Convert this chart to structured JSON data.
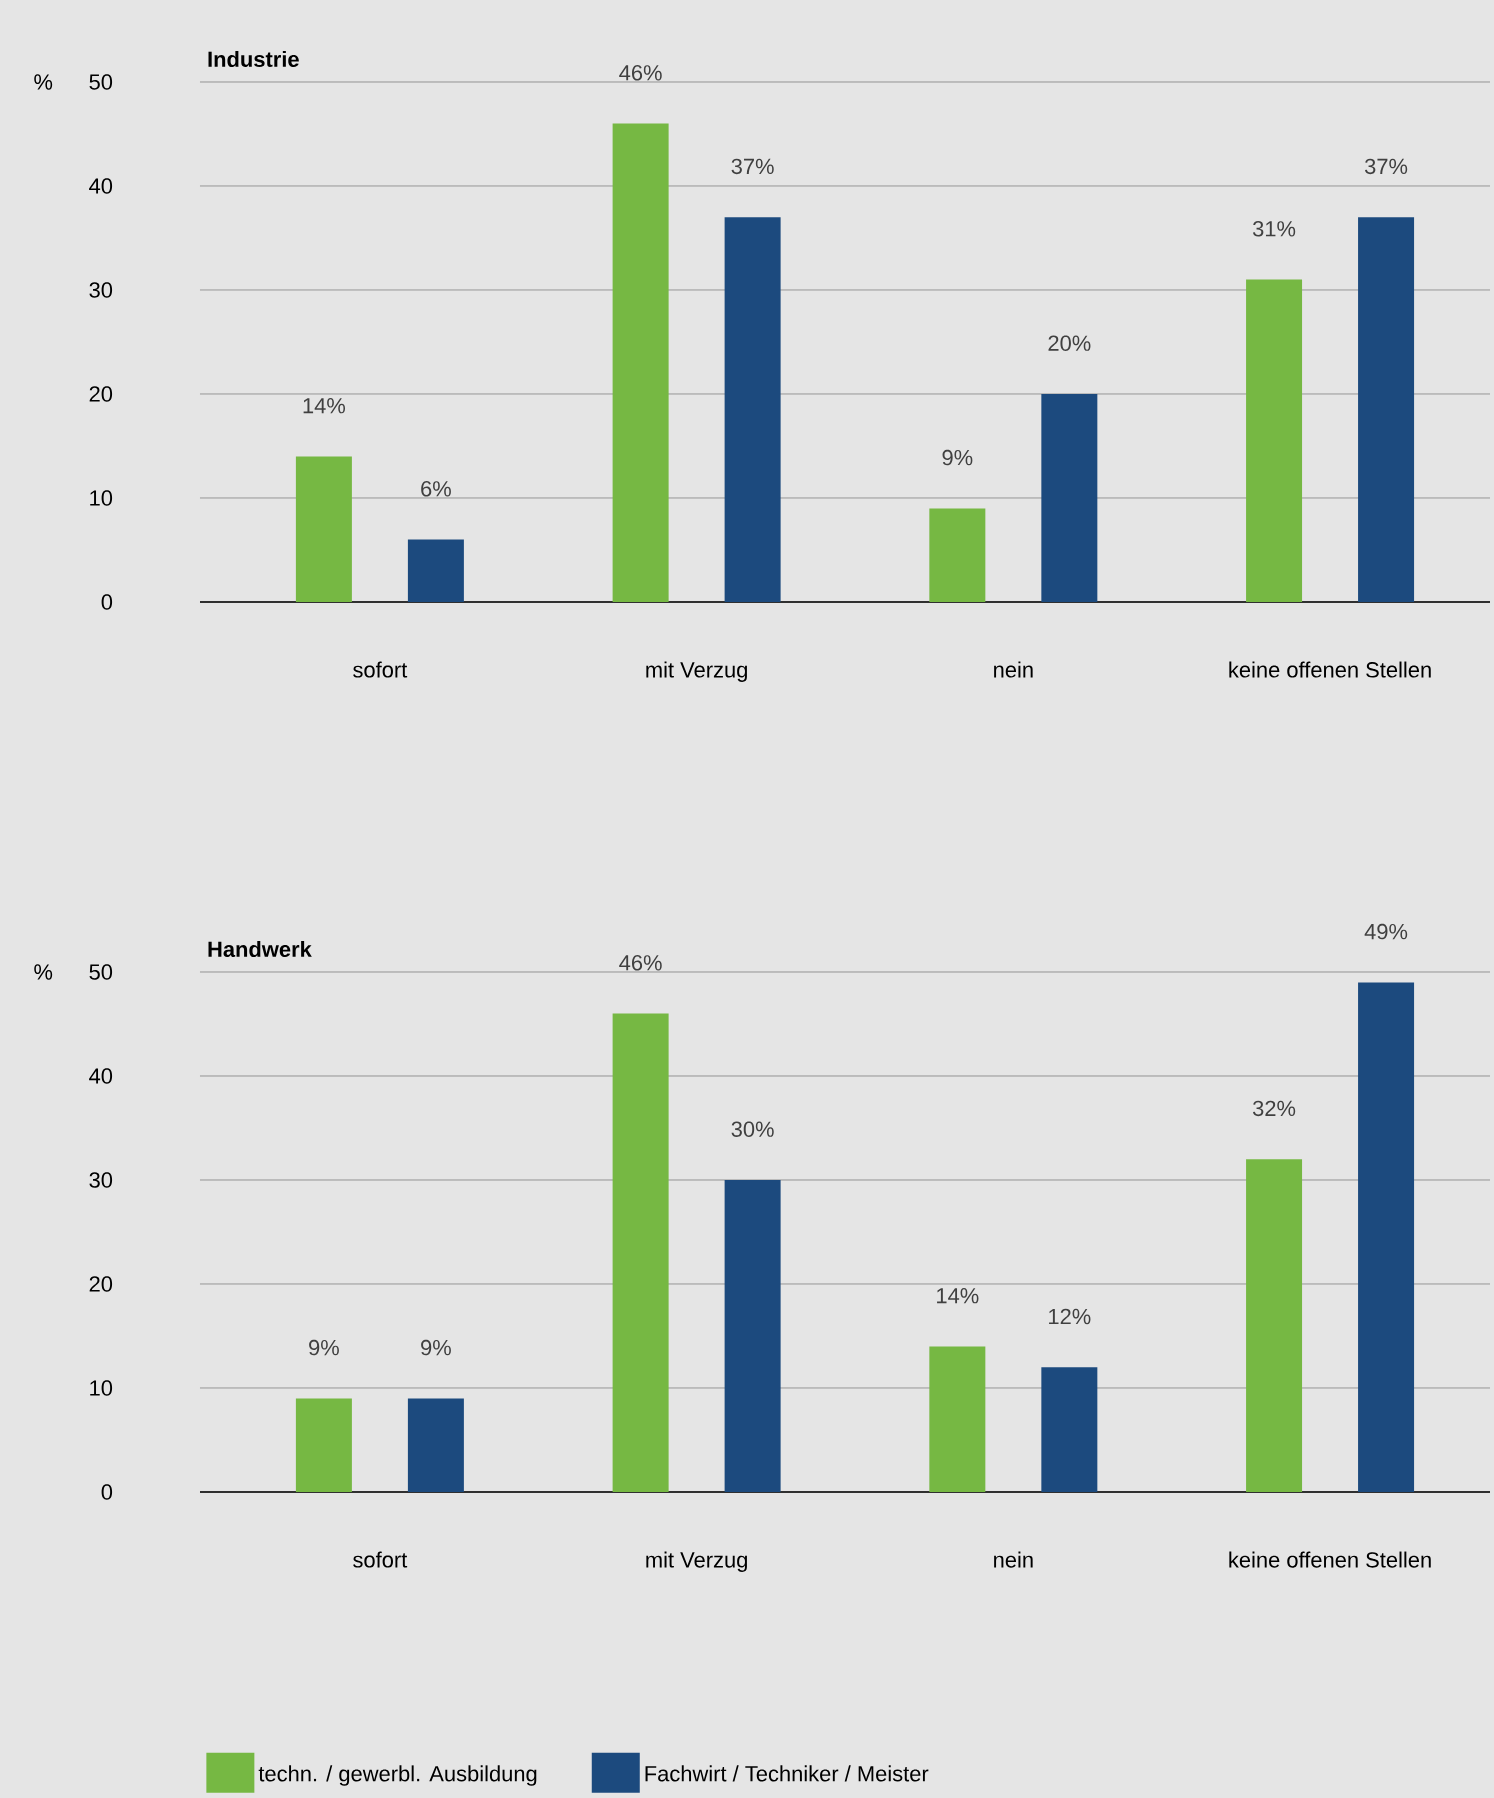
{
  "chart_data": [
    {
      "type": "bar",
      "title": "Industrie",
      "ylabel": "%",
      "categories": [
        "sofort",
        "mit Verzug",
        "nein",
        "keine offenen Stellen"
      ],
      "ylim": [
        0,
        50
      ],
      "yticks": [
        0,
        10,
        20,
        30,
        40,
        50
      ],
      "grid": "y",
      "series": [
        {
          "color": "#76b843",
          "values": [
            14,
            46,
            9,
            31
          ],
          "value_labels": [
            "14%",
            "46%",
            "9%",
            "31%"
          ]
        },
        {
          "color": "#1c4a7e",
          "values": [
            6,
            37,
            20,
            37
          ],
          "value_labels": [
            "6%",
            "37%",
            "20%",
            "37%"
          ]
        }
      ]
    },
    {
      "type": "bar",
      "title": "Handwerk",
      "ylabel": "%",
      "categories": [
        "sofort",
        "mit Verzug",
        "nein",
        "keine offenen Stellen"
      ],
      "ylim": [
        0,
        50
      ],
      "yticks": [
        0,
        10,
        20,
        30,
        40,
        50
      ],
      "grid": "y",
      "legend": "bottom",
      "series": [
        {
          "name": "techn. / gewerbl. Ausbildung",
          "color": "#76b843",
          "values": [
            9,
            46,
            14,
            32
          ],
          "value_labels": [
            "9%",
            "46%",
            "14%",
            "32%"
          ]
        },
        {
          "name": "Fachwirt / Techniker / Meister",
          "color": "#1c4a7e",
          "values": [
            9,
            30,
            12,
            49
          ],
          "value_labels": [
            "9%",
            "30%",
            "12%",
            "49%"
          ]
        }
      ]
    }
  ]
}
